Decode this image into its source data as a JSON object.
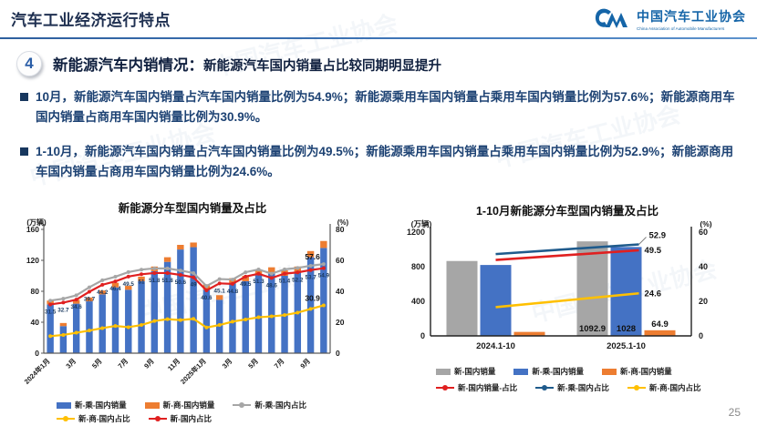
{
  "header": {
    "title": "汽车工业经济运行特点",
    "logo": {
      "mark": "caam-cm-monogram",
      "org_cn": "中国汽车工业协会",
      "org_en": "China Association of Automobile Manufacturers"
    }
  },
  "section": {
    "number": "4",
    "heading_main": "新能源汽车内销情况：",
    "heading_sub": "新能源汽车国内销量占比较同期明显提升"
  },
  "bullets": [
    "10月，新能源汽车国内销量占汽车国内销量比例为54.9%；新能源乘用车国内销量占乘用车国内销量比例为57.6%；新能源商用车国内销量占商用车国内销量比例为30.9%。",
    "1-10月，新能源汽车国内销量占汽车国内销量比例为49.5%；新能源乘用车国内销量占乘用车国内销量比例为52.9%；新能源商用车国内销量占商用车国内销量比例为24.6%。"
  ],
  "watermark": "中国汽车工业协会",
  "page_number": "25",
  "colors": {
    "accent_navy": "#17375e",
    "bar_blue": "#4472c4",
    "bar_orange": "#ed7d31",
    "bar_gray": "#a6a6a6",
    "line_red": "#e02020",
    "line_yellow": "#ffc000",
    "line_darkblue": "#1f5b8c",
    "logo_blue": "#1565a8"
  },
  "chart_data": [
    {
      "type": "bar",
      "subtype": "stacked-bars-with-lines",
      "title": "新能源分车型国内销量及占比",
      "left_axis": {
        "unit": "(万辆)",
        "ticks": [
          0,
          40,
          80,
          120,
          160
        ],
        "max": 160
      },
      "right_axis": {
        "unit": "(%)",
        "ticks": [
          0,
          20,
          40,
          60,
          80
        ],
        "max": 80
      },
      "categories": [
        "2024年1月",
        "2月",
        "3月",
        "4月",
        "5月",
        "6月",
        "7月",
        "8月",
        "9月",
        "10月",
        "11月",
        "12月",
        "2025年1月",
        "2月",
        "3月",
        "4月",
        "5月",
        "6月",
        "7月",
        "8月",
        "9月",
        "10月"
      ],
      "x_tick_labels": [
        "2024年1月",
        "3月",
        "5月",
        "7月",
        "9月",
        "11月",
        "2025年1月",
        "3月",
        "5月",
        "7月",
        "9月"
      ],
      "x_tick_every": 2,
      "bar_series": [
        {
          "name": "新-乘-国内销量",
          "color": "#4472c4",
          "values": [
            63,
            35,
            64,
            67,
            76,
            85,
            82,
            93,
            106,
            118,
            134,
            137,
            82,
            69,
            90,
            93,
            101,
            104,
            100,
            105,
            124,
            136
          ]
        },
        {
          "name": "新-商-国内销量",
          "color": "#ed7d31",
          "values": [
            5,
            4,
            5,
            5,
            5,
            6,
            5,
            6,
            6,
            6,
            6,
            6,
            7,
            6,
            7,
            7,
            7,
            7,
            7,
            7,
            8,
            9
          ]
        }
      ],
      "line_series": [
        {
          "name": "新-乘-国内占比",
          "color": "#a6a6a6",
          "values": [
            34,
            35.2,
            37.4,
            42.6,
            47.1,
            49.4,
            52.4,
            54,
            54.8,
            54.8,
            53.4,
            51.8,
            43.4,
            47.9,
            47.6,
            52.3,
            54.1,
            51.4,
            54.2,
            55.1,
            56.5,
            57.6
          ],
          "end_label": "57.6"
        },
        {
          "name": "新-国内占比",
          "color": "#e02020",
          "values": [
            31.5,
            32.7,
            34.6,
            39.7,
            44.2,
            46.4,
            49.5,
            51,
            51.8,
            51.8,
            50.6,
            49,
            40.6,
            45.1,
            44.8,
            49.5,
            51.3,
            48.6,
            51.4,
            52.2,
            53.7,
            54.9
          ],
          "point_labels": [
            "31.5",
            "32.7",
            "34.6",
            "39.7",
            "44.2",
            "46.4",
            "49.5",
            "51",
            "51.8",
            "51.8",
            "50.6",
            "49",
            "40.6",
            "45.1",
            "44.8",
            "49.5",
            "51.3",
            "48.6",
            "51.4",
            "52.2",
            "53.7",
            "54.9"
          ]
        },
        {
          "name": "新-商-国内占比",
          "color": "#ffc000",
          "values": [
            11,
            11.8,
            13.2,
            14.6,
            16.2,
            17.6,
            16.8,
            18.2,
            20.8,
            22,
            21.4,
            22.2,
            16.6,
            18.2,
            20.4,
            21.8,
            23.2,
            23.8,
            24.6,
            26.2,
            28.6,
            30.9
          ],
          "end_label": "30.9"
        }
      ],
      "legend_rows": [
        [
          "新-乘-国内销量",
          "新-商-国内销量",
          "新-乘-国内占比"
        ],
        [
          "新-商-国内占比",
          "新-国内占比"
        ]
      ]
    },
    {
      "type": "bar",
      "subtype": "grouped-bars-with-lines",
      "title": "1-10月新能源分车型国内销量及占比",
      "left_axis": {
        "unit": "(万辆)",
        "ticks": [
          0,
          400,
          800,
          1200
        ],
        "max": 1200
      },
      "right_axis": {
        "unit": "(%)",
        "ticks": [
          0,
          20,
          40,
          60
        ],
        "max": 60
      },
      "categories": [
        "2024.1-10",
        "2025.1-10"
      ],
      "bar_series": [
        {
          "name": "新-国内销量",
          "color": "#a6a6a6",
          "values": [
            866,
            1092.9
          ],
          "bar_labels": [
            null,
            "1092.9"
          ]
        },
        {
          "name": "新-乘-国内销量",
          "color": "#4472c4",
          "values": [
            820,
            1028
          ],
          "bar_labels": [
            null,
            "1028"
          ]
        },
        {
          "name": "新-商-国内销量",
          "color": "#ed7d31",
          "values": [
            46,
            64.9
          ],
          "bar_labels": [
            null,
            "64.9"
          ]
        }
      ],
      "line_series": [
        {
          "name": "新-乘-国内占比",
          "color": "#1f5b8c",
          "values": [
            47.3,
            52.9
          ],
          "end_label": "52.9"
        },
        {
          "name": "新-国内销量-占比",
          "color": "#e02020",
          "values": [
            43.9,
            49.5
          ],
          "end_label": "49.5"
        },
        {
          "name": "新-商-国内占比",
          "color": "#ffc000",
          "values": [
            16.6,
            24.6
          ],
          "end_label": "24.6"
        }
      ],
      "legend_rows": [
        [
          "新-国内销量",
          "新-乘-国内销量",
          "新-商-国内销量"
        ],
        [
          "新-国内销量-占比",
          "新-乘-国内占比",
          "新-商-国内占比"
        ]
      ]
    }
  ]
}
